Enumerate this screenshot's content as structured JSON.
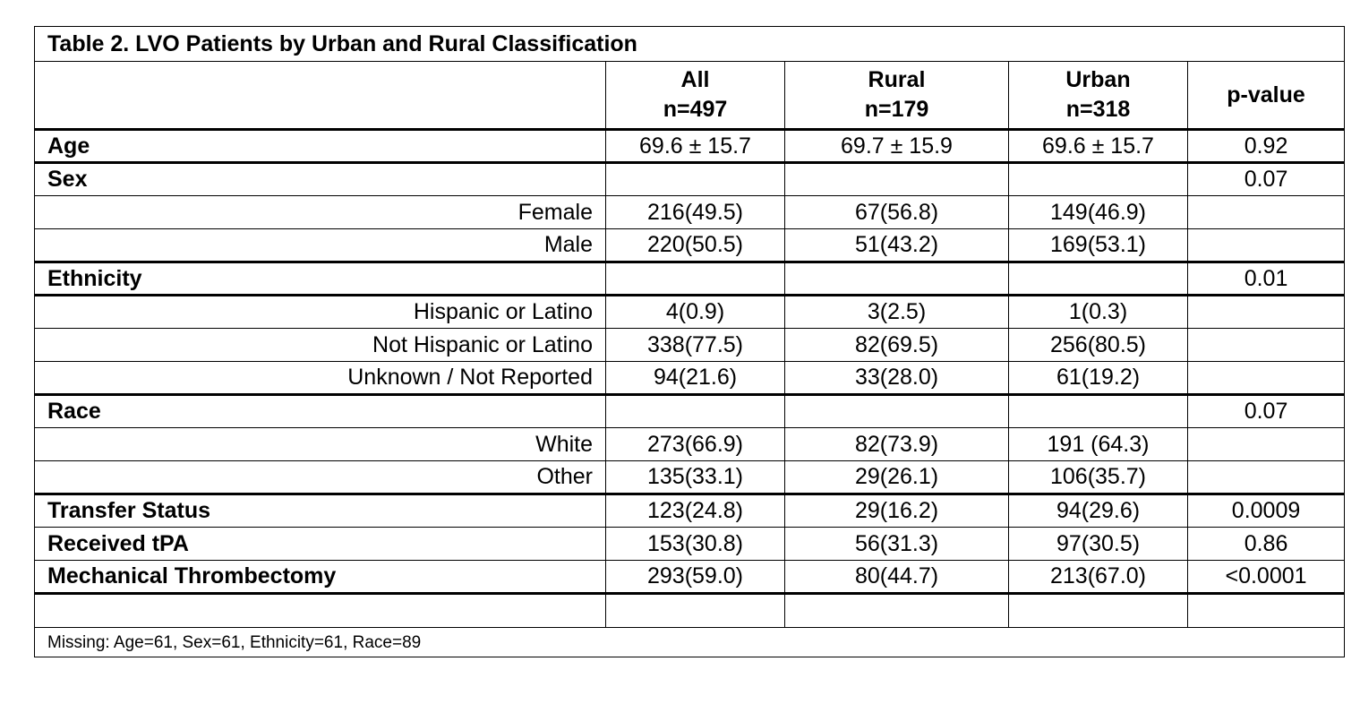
{
  "title": "Table 2. LVO Patients by Urban and Rural Classification",
  "columns": [
    {
      "label": "All",
      "n": "n=497"
    },
    {
      "label": "Rural",
      "n": "n=179"
    },
    {
      "label": "Urban",
      "n": "n=318"
    },
    {
      "label": "p-value",
      "n": ""
    }
  ],
  "rows": [
    {
      "label": "Age",
      "type": "header",
      "values": [
        "69.6 ± 15.7",
        "69.7 ± 15.9",
        "69.6 ± 15.7",
        "0.92"
      ]
    },
    {
      "label": "Sex",
      "type": "header",
      "values": [
        "",
        "",
        "",
        "0.07"
      ]
    },
    {
      "label": "Female",
      "type": "sub",
      "values": [
        "216(49.5)",
        "67(56.8)",
        "149(46.9)",
        ""
      ]
    },
    {
      "label": "Male",
      "type": "sub",
      "values": [
        "220(50.5)",
        "51(43.2)",
        "169(53.1)",
        ""
      ]
    },
    {
      "label": "Ethnicity",
      "type": "header",
      "values": [
        "",
        "",
        "",
        "0.01"
      ]
    },
    {
      "label": "Hispanic or Latino",
      "type": "sub",
      "values": [
        "4(0.9)",
        "3(2.5)",
        "1(0.3)",
        ""
      ]
    },
    {
      "label": "Not Hispanic or Latino",
      "type": "sub",
      "values": [
        "338(77.5)",
        "82(69.5)",
        "256(80.5)",
        ""
      ]
    },
    {
      "label": "Unknown / Not Reported",
      "type": "sub",
      "values": [
        "94(21.6)",
        "33(28.0)",
        "61(19.2)",
        ""
      ]
    },
    {
      "label": "Race",
      "type": "header",
      "values": [
        "",
        "",
        "",
        "0.07"
      ]
    },
    {
      "label": "White",
      "type": "sub",
      "values": [
        "273(66.9)",
        "82(73.9)",
        "191 (64.3)",
        ""
      ]
    },
    {
      "label": "Other",
      "type": "sub",
      "values": [
        "135(33.1)",
        "29(26.1)",
        "106(35.7)",
        ""
      ]
    },
    {
      "label": "Transfer Status",
      "type": "header",
      "values": [
        "123(24.8)",
        "29(16.2)",
        "94(29.6)",
        "0.0009"
      ]
    },
    {
      "label": "Received tPA",
      "type": "header",
      "values": [
        "153(30.8)",
        "56(31.3)",
        "97(30.5)",
        "0.86"
      ]
    },
    {
      "label": "Mechanical Thrombectomy",
      "type": "header",
      "values": [
        "293(59.0)",
        "80(44.7)",
        "213(67.0)",
        "<0.0001"
      ]
    }
  ],
  "footnote": "Missing: Age=61, Sex=61, Ethnicity=61, Race=89"
}
